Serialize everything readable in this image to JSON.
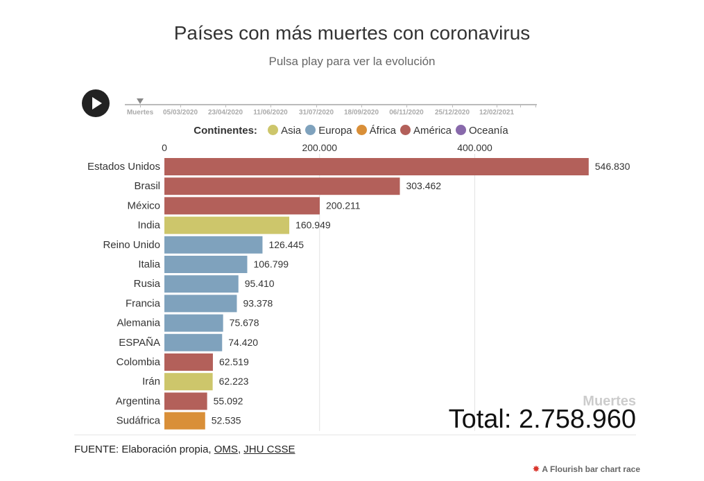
{
  "title": "Países con más muertes con coronavirus",
  "subtitle": "Pulsa play para ver la evolución",
  "timeline": {
    "labels": [
      "Muertes",
      "05/03/2020",
      "23/04/2020",
      "11/06/2020",
      "31/07/2020",
      "18/09/2020",
      "06/11/2020",
      "25/12/2020",
      "12/02/2021"
    ]
  },
  "legend": {
    "title": "Continentes:",
    "items": [
      {
        "label": "Asia",
        "color": "#cdc66b"
      },
      {
        "label": "Europa",
        "color": "#7fa2bd"
      },
      {
        "label": "África",
        "color": "#d98f38"
      },
      {
        "label": "América",
        "color": "#b3605a"
      },
      {
        "label": "Oceanía",
        "color": "#8869ab"
      }
    ]
  },
  "chart_data": {
    "type": "bar",
    "orientation": "horizontal",
    "xlim": [
      0,
      600000
    ],
    "ticks": [
      {
        "value": 0,
        "label": "0"
      },
      {
        "value": 200000,
        "label": "200.000"
      },
      {
        "value": 400000,
        "label": "400.000"
      }
    ],
    "grid": true,
    "categories": [
      "Estados Unidos",
      "Brasil",
      "México",
      "India",
      "Reino Unido",
      "Italia",
      "Rusia",
      "Francia",
      "Alemania",
      "ESPAÑA",
      "Colombia",
      "Irán",
      "Argentina",
      "Sudáfrica"
    ],
    "values": [
      546830,
      303462,
      200211,
      160949,
      126445,
      106799,
      95410,
      93378,
      75678,
      74420,
      62519,
      62223,
      55092,
      52535
    ],
    "value_labels": [
      "546.830",
      "303.462",
      "200.211",
      "160.949",
      "126.445",
      "106.799",
      "95.410",
      "93.378",
      "75.678",
      "74.420",
      "62.519",
      "62.223",
      "55.092",
      "52.535"
    ],
    "continents": [
      "América",
      "América",
      "América",
      "Asia",
      "Europa",
      "Europa",
      "Europa",
      "Europa",
      "Europa",
      "Europa",
      "América",
      "Asia",
      "América",
      "África"
    ]
  },
  "total": {
    "label": "Muertes",
    "value": "Total: 2.758.960"
  },
  "source": {
    "prefix": "FUENTE: Elaboración propia, ",
    "link1": "OMS",
    "sep": ", ",
    "link2": "JHU CSSE"
  },
  "credit": "A Flourish bar chart race"
}
